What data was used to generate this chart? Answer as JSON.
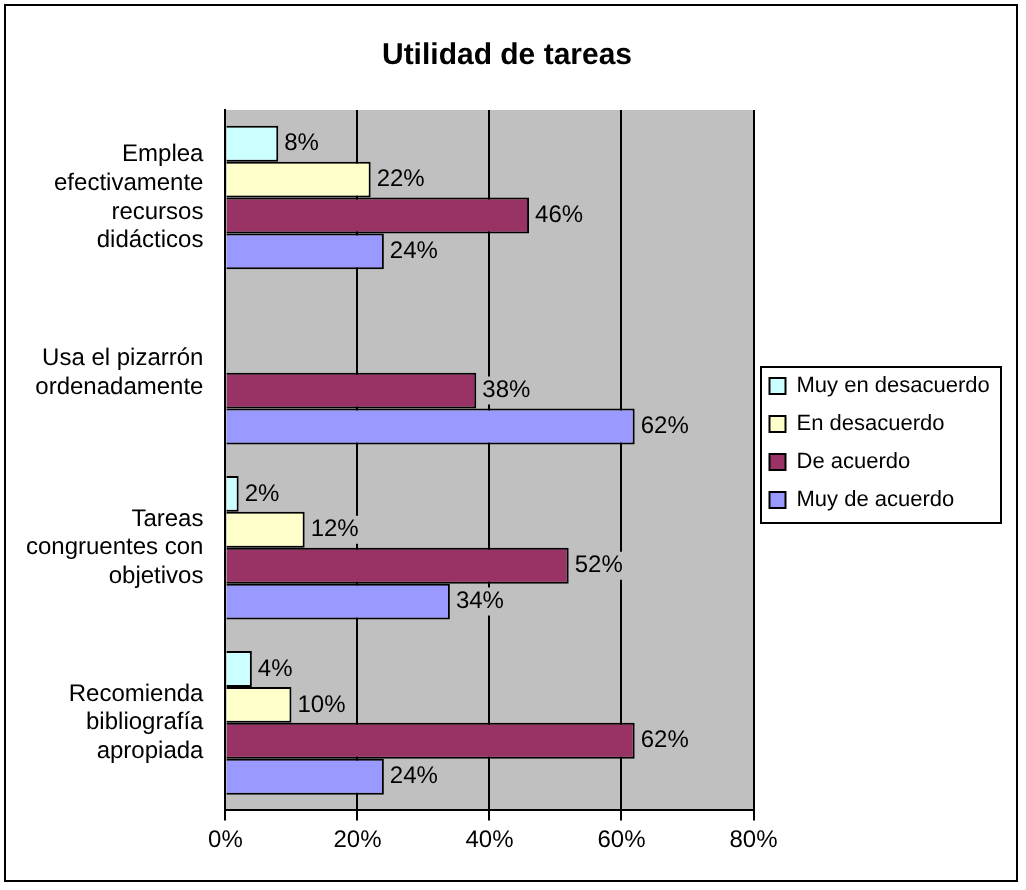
{
  "chart_data": {
    "type": "bar",
    "orientation": "horizontal",
    "title": "Utilidad de tareas",
    "categories": [
      "Emplea efectivamente recursos didácticos",
      "Usa el pizarrón ordenadamente",
      "Tareas congruentes con objetivos",
      "Recomienda bibliografía apropiada"
    ],
    "series": [
      {
        "name": "Muy en desacuerdo",
        "color": "#ccffff",
        "values": [
          8,
          null,
          2,
          4
        ],
        "value_labels": [
          "8%",
          null,
          "2%",
          "4%"
        ]
      },
      {
        "name": "En desacuerdo",
        "color": "#ffffcc",
        "values": [
          22,
          null,
          12,
          10
        ],
        "value_labels": [
          "22%",
          null,
          "12%",
          "10%"
        ]
      },
      {
        "name": "De acuerdo",
        "color": "#993366",
        "values": [
          46,
          38,
          52,
          62
        ],
        "value_labels": [
          "46%",
          "38%",
          "52%",
          "62%"
        ]
      },
      {
        "name": "Muy de acuerdo",
        "color": "#9999ff",
        "values": [
          24,
          62,
          34,
          24
        ],
        "value_labels": [
          "24%",
          "62%",
          "34%",
          "24%"
        ]
      }
    ],
    "xlim": [
      0,
      80
    ],
    "xticks": [
      {
        "value": 0,
        "label": "0%"
      },
      {
        "value": 20,
        "label": "20%"
      },
      {
        "value": 40,
        "label": "40%"
      },
      {
        "value": 60,
        "label": "60%"
      },
      {
        "value": 80,
        "label": "80%"
      }
    ],
    "grid": "x",
    "legend": "right"
  }
}
